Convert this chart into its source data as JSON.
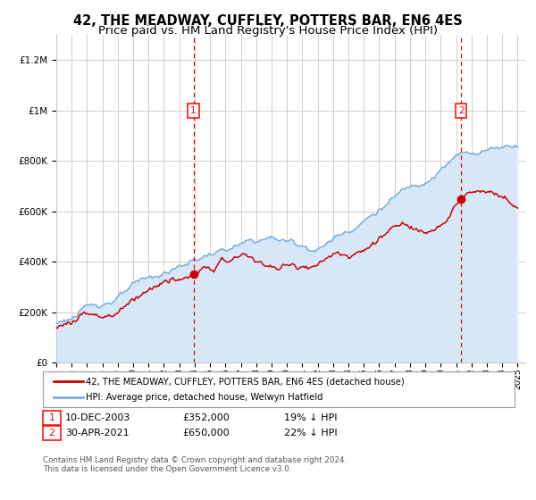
{
  "title": "42, THE MEADWAY, CUFFLEY, POTTERS BAR, EN6 4ES",
  "subtitle": "Price paid vs. HM Land Registry's House Price Index (HPI)",
  "ylim": [
    0,
    1300000
  ],
  "yticks": [
    0,
    200000,
    400000,
    600000,
    800000,
    1000000,
    1200000
  ],
  "ytick_labels": [
    "£0",
    "£200K",
    "£400K",
    "£600K",
    "£800K",
    "£1M",
    "£1.2M"
  ],
  "x_start_year": 1995,
  "x_end_year": 2025,
  "red_line_color": "#cc0000",
  "blue_line_color": "#7aacdb",
  "blue_fill_color": "#d6e8f7",
  "background_color": "#ffffff",
  "grid_color": "#c8c8c8",
  "marker1_x": 2003.92,
  "marker1_value": 352000,
  "marker1_label": "1",
  "marker1_date_str": "10-DEC-2003",
  "marker1_pct": "19% ↓ HPI",
  "marker2_x": 2021.33,
  "marker2_value": 650000,
  "marker2_label": "2",
  "marker2_date_str": "30-APR-2021",
  "marker2_pct": "22% ↓ HPI",
  "legend_label_red": "42, THE MEADWAY, CUFFLEY, POTTERS BAR, EN6 4ES (detached house)",
  "legend_label_blue": "HPI: Average price, detached house, Welwyn Hatfield",
  "footer_text": "Contains HM Land Registry data © Crown copyright and database right 2024.\nThis data is licensed under the Open Government Licence v3.0.",
  "title_fontsize": 10.5,
  "subtitle_fontsize": 9.5
}
